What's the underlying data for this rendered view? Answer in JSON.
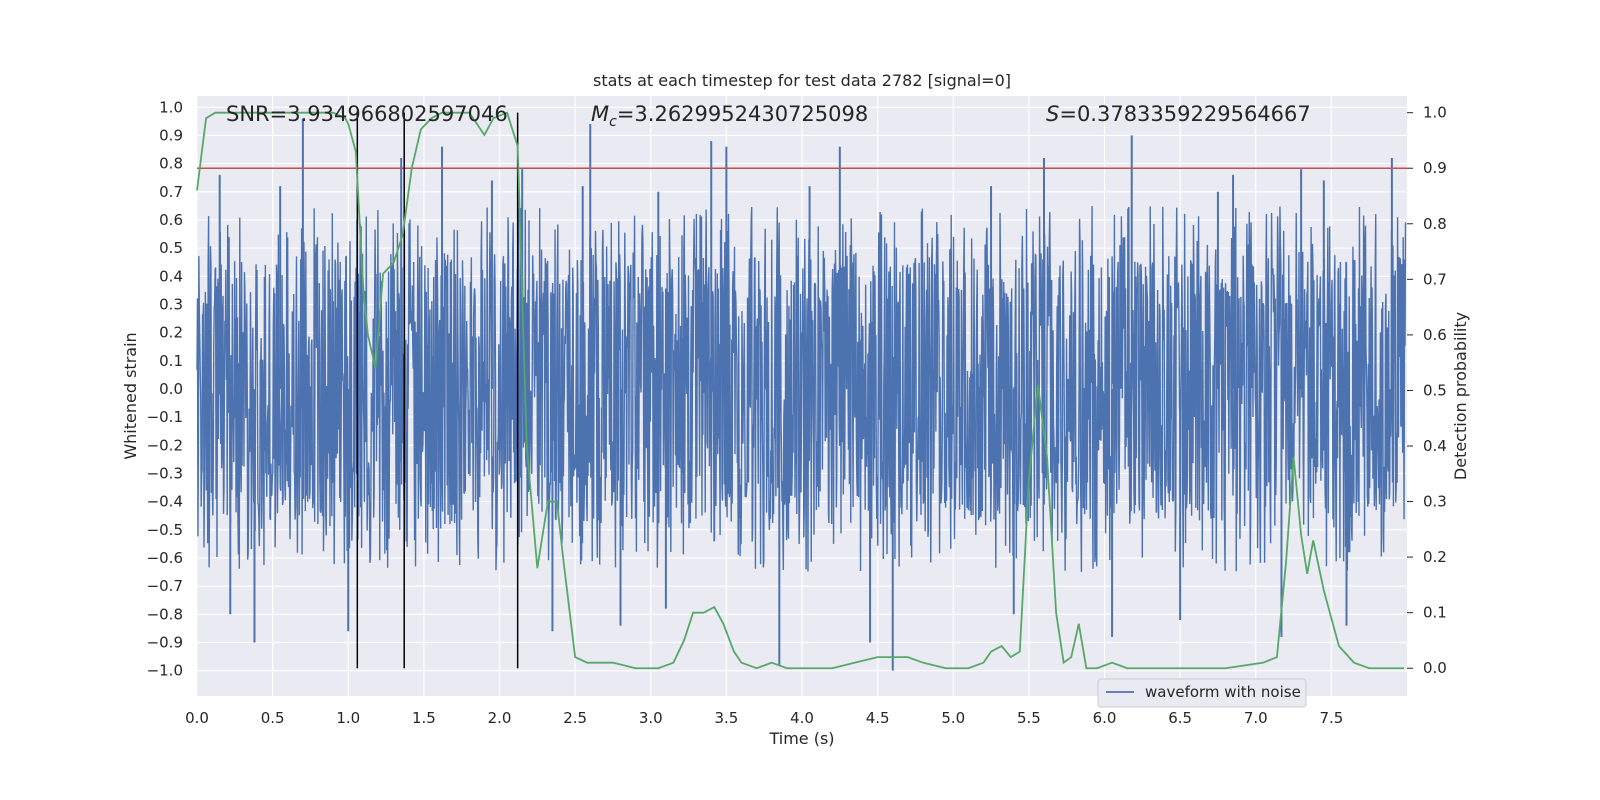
{
  "chart_data": {
    "type": "line",
    "title": "stats at each timestep for test data 2782 [signal=0]",
    "xlabel": "Time (s)",
    "ylabel_left": "Whitened strain",
    "ylabel_right": "Detection probability",
    "xlim": [
      0.0,
      8.0
    ],
    "ylim_left": [
      -1.09,
      1.04
    ],
    "ylim_right": [
      -0.05,
      1.03
    ],
    "x_ticks": [
      0.0,
      0.5,
      1.0,
      1.5,
      2.0,
      2.5,
      3.0,
      3.5,
      4.0,
      4.5,
      5.0,
      5.5,
      6.0,
      6.5,
      7.0,
      7.5
    ],
    "x_tick_labels": [
      "0.0",
      "0.5",
      "1.0",
      "1.5",
      "2.0",
      "2.5",
      "3.0",
      "3.5",
      "4.0",
      "4.5",
      "5.0",
      "5.5",
      "6.0",
      "6.5",
      "7.0",
      "7.5"
    ],
    "y_left_ticks": [
      1.0,
      0.9,
      0.8,
      0.7,
      0.6,
      0.5,
      0.4,
      0.3,
      0.2,
      0.1,
      0.0,
      -0.1,
      -0.2,
      -0.3,
      -0.4,
      -0.5,
      -0.6,
      -0.7,
      -0.8,
      -0.9,
      -1.0
    ],
    "y_left_tick_labels": [
      "1.0",
      "0.9",
      "0.8",
      "0.7",
      "0.6",
      "0.5",
      "0.4",
      "0.3",
      "0.2",
      "0.1",
      "0.0",
      "−0.1",
      "−0.2",
      "−0.3",
      "−0.4",
      "−0.5",
      "−0.6",
      "−0.7",
      "−0.8",
      "−0.9",
      "−1.0"
    ],
    "y_right_ticks": [
      1.0,
      0.9,
      0.8,
      0.7,
      0.6,
      0.5,
      0.4,
      0.3,
      0.2,
      0.1,
      0.0
    ],
    "y_right_tick_labels": [
      "1.0",
      "0.9",
      "0.8",
      "0.7",
      "0.6",
      "0.5",
      "0.4",
      "0.3",
      "0.2",
      "0.1",
      "0.0"
    ],
    "annotations": {
      "snr": "SNR=3.934966802597046",
      "mc_symbol": "M",
      "mc_subscript": "c",
      "mc_value": "=3.2629952430725098",
      "s_symbol": "S",
      "s_value": "=0.3783359229564667"
    },
    "threshold": {
      "value": 0.9,
      "axis": "right",
      "color": "#c44e52"
    },
    "vertical_markers_s": [
      1.06,
      1.37,
      2.12
    ],
    "waveform": {
      "name": "waveform with noise",
      "color": "#4c72b0",
      "t_start": 0.0,
      "t_end": 7.99,
      "core_amplitude": 0.48,
      "spikes": [
        {
          "t": 0.7,
          "v": 0.96
        },
        {
          "t": 0.38,
          "v": -0.9
        },
        {
          "t": 0.22,
          "v": -0.8
        },
        {
          "t": 0.15,
          "v": 0.76
        },
        {
          "t": 1.35,
          "v": 0.82
        },
        {
          "t": 1.62,
          "v": 0.86
        },
        {
          "t": 1.95,
          "v": 0.74
        },
        {
          "t": 2.15,
          "v": 0.78
        },
        {
          "t": 2.35,
          "v": -0.86
        },
        {
          "t": 2.6,
          "v": 0.94
        },
        {
          "t": 2.8,
          "v": -0.84
        },
        {
          "t": 3.4,
          "v": 0.88
        },
        {
          "t": 3.5,
          "v": 0.86
        },
        {
          "t": 3.85,
          "v": -0.98
        },
        {
          "t": 4.25,
          "v": 0.86
        },
        {
          "t": 4.45,
          "v": -0.9
        },
        {
          "t": 4.6,
          "v": -1.0
        },
        {
          "t": 5.6,
          "v": 0.82
        },
        {
          "t": 6.05,
          "v": -0.88
        },
        {
          "t": 6.18,
          "v": 0.9
        },
        {
          "t": 6.5,
          "v": -0.82
        },
        {
          "t": 6.85,
          "v": 0.76
        },
        {
          "t": 7.17,
          "v": -0.88
        },
        {
          "t": 7.3,
          "v": 0.78
        },
        {
          "t": 7.6,
          "v": -0.84
        },
        {
          "t": 7.9,
          "v": 0.82
        },
        {
          "t": 1.0,
          "v": -0.86
        },
        {
          "t": 2.55,
          "v": 0.72
        },
        {
          "t": 5.25,
          "v": 0.72
        },
        {
          "t": 3.05,
          "v": 0.7
        },
        {
          "t": 0.55,
          "v": 0.72
        },
        {
          "t": 6.75,
          "v": 0.7
        },
        {
          "t": 4.05,
          "v": 0.72
        },
        {
          "t": 3.1,
          "v": -0.78
        },
        {
          "t": 5.4,
          "v": -0.8
        },
        {
          "t": 7.45,
          "v": 0.74
        }
      ]
    },
    "probability": {
      "color": "#55a868",
      "t": [
        0.0,
        0.06,
        0.12,
        0.3,
        0.5,
        0.7,
        0.9,
        0.98,
        1.0,
        1.05,
        1.1,
        1.13,
        1.18,
        1.23,
        1.3,
        1.36,
        1.42,
        1.48,
        1.55,
        1.62,
        1.7,
        1.8,
        1.9,
        1.96,
        2.05,
        2.12,
        2.18,
        2.25,
        2.32,
        2.38,
        2.42,
        2.5,
        2.58,
        2.75,
        2.9,
        3.05,
        3.15,
        3.22,
        3.28,
        3.35,
        3.42,
        3.48,
        3.55,
        3.6,
        3.7,
        3.8,
        3.9,
        4.0,
        4.2,
        4.35,
        4.5,
        4.62,
        4.7,
        4.8,
        4.95,
        5.1,
        5.2,
        5.25,
        5.32,
        5.38,
        5.44,
        5.5,
        5.56,
        5.62,
        5.68,
        5.73,
        5.78,
        5.83,
        5.88,
        5.95,
        6.05,
        6.15,
        6.3,
        6.5,
        6.8,
        7.05,
        7.14,
        7.2,
        7.25,
        7.3,
        7.34,
        7.38,
        7.45,
        7.55,
        7.65,
        7.75,
        7.9,
        7.98
      ],
      "p": [
        0.86,
        0.99,
        1.0,
        1.0,
        1.0,
        1.0,
        1.0,
        0.99,
        0.98,
        0.93,
        0.68,
        0.6,
        0.54,
        0.71,
        0.73,
        0.78,
        0.9,
        0.97,
        0.99,
        1.0,
        1.0,
        1.0,
        0.96,
        0.99,
        1.0,
        0.94,
        0.4,
        0.18,
        0.3,
        0.3,
        0.2,
        0.02,
        0.01,
        0.01,
        0.0,
        0.0,
        0.01,
        0.05,
        0.1,
        0.1,
        0.11,
        0.08,
        0.03,
        0.01,
        0.0,
        0.01,
        0.0,
        0.0,
        0.0,
        0.01,
        0.02,
        0.02,
        0.02,
        0.01,
        0.0,
        0.0,
        0.01,
        0.03,
        0.04,
        0.02,
        0.03,
        0.34,
        0.51,
        0.38,
        0.1,
        0.01,
        0.02,
        0.08,
        0.0,
        0.0,
        0.01,
        0.0,
        0.0,
        0.0,
        0.0,
        0.01,
        0.02,
        0.19,
        0.38,
        0.24,
        0.17,
        0.23,
        0.14,
        0.04,
        0.01,
        0.0,
        0.0,
        0.0
      ]
    },
    "legend": {
      "label": "waveform with noise",
      "position": "lower-right"
    },
    "grid": true
  }
}
